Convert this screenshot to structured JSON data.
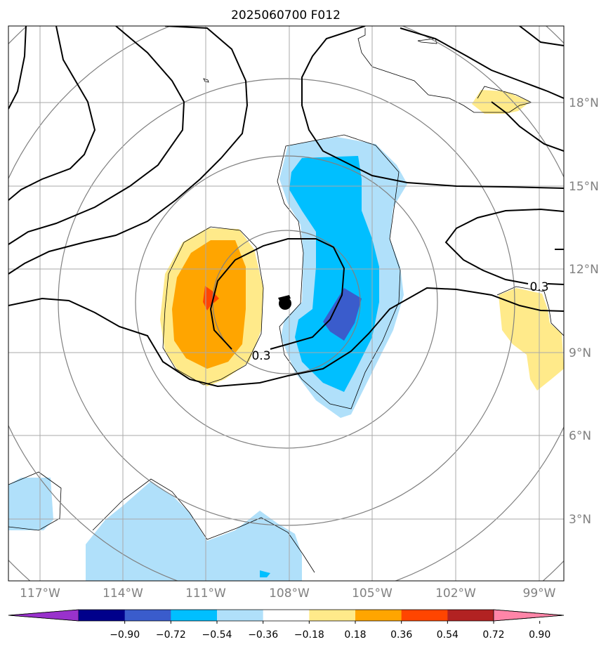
{
  "title": "2025060700 F012",
  "map": {
    "lat_labels": [
      "18°N",
      "15°N",
      "12°N",
      "9°N",
      "6°N",
      "3°N"
    ],
    "lon_labels": [
      "117°W",
      "114°W",
      "111°W",
      "108°W",
      "105°W",
      "102°W",
      "99°W"
    ],
    "contour_labels": [
      "0.3",
      "0.3"
    ],
    "storm_center": {
      "lon": "108°W",
      "lat": "11°N"
    }
  },
  "colorbar": {
    "tick_labels": [
      "−0.90",
      "−0.72",
      "−0.54",
      "−0.36",
      "−0.18",
      "0.18",
      "0.36",
      "0.54",
      "0.72",
      "0.90"
    ],
    "colors": [
      "#9932cc",
      "#00008b",
      "#3a5ccc",
      "#00bfff",
      "#b0e0fa",
      "#ffffff",
      "#ffea8a",
      "#ffa500",
      "#ff4500",
      "#b22222",
      "#ff85a8"
    ]
  }
}
